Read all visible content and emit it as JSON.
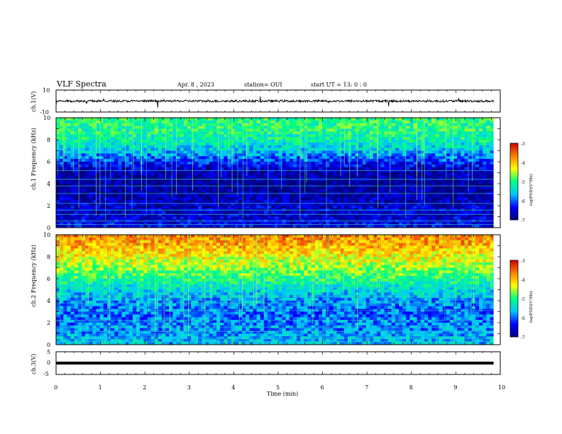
{
  "header": {
    "title": "VLF Spectra",
    "date": "Apr. 8 , 2023",
    "station": "station= OUI",
    "start": "start UT = 13: 0 : 0"
  },
  "colors": {
    "colormap": [
      "#00007f",
      "#0000ff",
      "#00c8ff",
      "#00ff80",
      "#ffff00",
      "#ff7f00",
      "#cc0000"
    ],
    "trace": "#000000"
  },
  "chart_data": [
    {
      "type": "line",
      "panel": "ch1-waveform",
      "ylabel": "ch.1(V)",
      "ylim": [
        -10,
        10
      ],
      "yticks": [
        "10",
        "-10"
      ],
      "description_values": {
        "mean_level": 0,
        "typical_amplitude": 2
      }
    },
    {
      "type": "heatmap",
      "panel": "ch1-spectrogram",
      "ylabel": "ch.1 Frequency (kHz)",
      "ylim": [
        0,
        10
      ],
      "yticks": [
        "10",
        "8",
        "6",
        "4",
        "2",
        "0"
      ],
      "colorbar": {
        "label": "log(PSD)(V²/Hz)",
        "range": [
          -7,
          -3
        ],
        "ticks": [
          "-3",
          "-4",
          "-5",
          "-6",
          "-7"
        ]
      },
      "freq_profile_khz": [
        0,
        1,
        2,
        3,
        4,
        5,
        6,
        7,
        8,
        9,
        10
      ],
      "level_profile_log_psd": [
        -6.4,
        -6.6,
        -6.6,
        -6.8,
        -6.9,
        -6.8,
        -6.2,
        -5.6,
        -5.2,
        -5.0,
        -5.0
      ]
    },
    {
      "type": "heatmap",
      "panel": "ch2-spectrogram",
      "ylabel": "ch.2 Frequency (kHz)",
      "ylim": [
        0,
        10
      ],
      "yticks": [
        "10",
        "8",
        "6",
        "4",
        "2",
        "0"
      ],
      "colorbar": {
        "label": "log(PSD)(V²/Hz)",
        "range": [
          -7,
          -3
        ],
        "ticks": [
          "-3",
          "-4",
          "-5",
          "-6",
          "-7"
        ]
      },
      "freq_profile_khz": [
        0,
        1,
        2,
        3,
        4,
        5,
        6,
        7,
        8,
        9,
        10
      ],
      "level_profile_log_psd": [
        -5.6,
        -5.8,
        -5.9,
        -6.0,
        -5.8,
        -5.5,
        -5.0,
        -4.6,
        -4.3,
        -3.9,
        -3.7
      ]
    },
    {
      "type": "line",
      "panel": "ch3-waveform",
      "ylabel": "ch.3(V)",
      "ylim": [
        -5,
        5
      ],
      "yticks": [
        "5",
        "0",
        "-5"
      ],
      "description_values": {
        "constant_level": 0
      },
      "xlabel": "Time (min)",
      "xlim": [
        0,
        10
      ],
      "xticks": [
        "0",
        "1",
        "2",
        "3",
        "4",
        "5",
        "6",
        "7",
        "8",
        "9",
        "10"
      ],
      "data_end_min": 9.85
    }
  ]
}
